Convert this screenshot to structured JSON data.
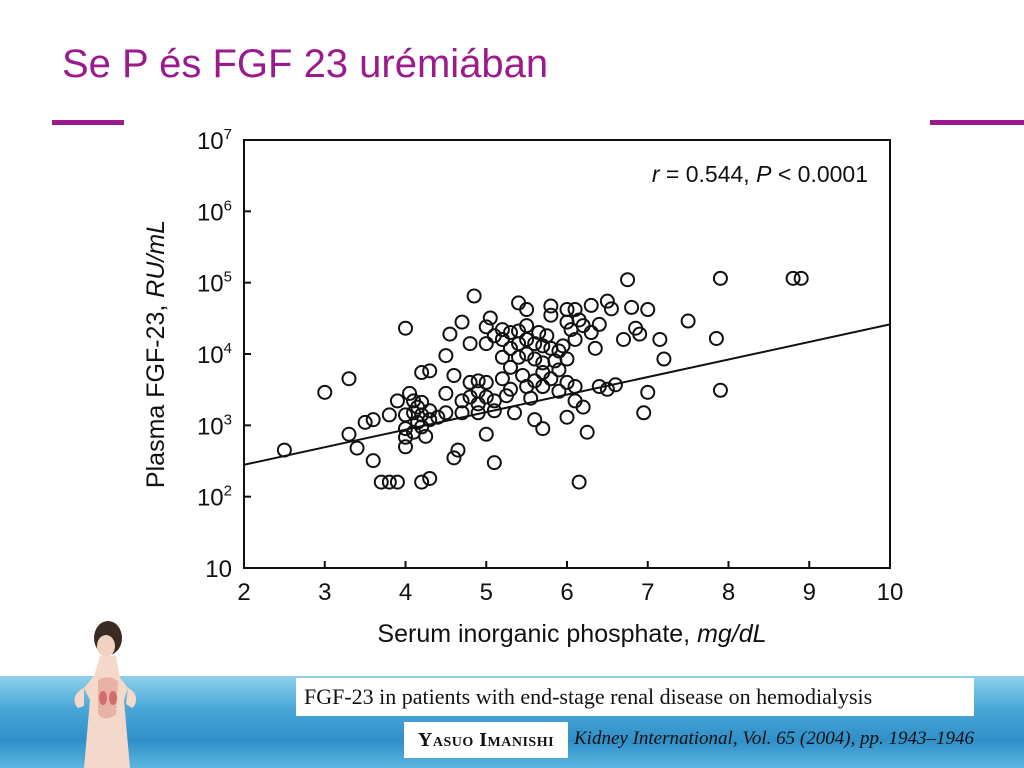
{
  "slide": {
    "title": "Se P és FGF 23 urémiában",
    "accent_color": "#9b1a8e",
    "caption": "FGF-23 in patients with end-stage renal disease on hemodialysis",
    "author": "Yasuo Imanishi",
    "citation": "Kidney International, Vol. 65 (2004), pp. 1943–1946",
    "decoration": "woman-figure-icon"
  },
  "chart_data": {
    "type": "scatter",
    "xlabel": "Serum inorganic phosphate,",
    "xlabel_unit": "mg/dL",
    "ylabel": "Plasma FGF-23,",
    "ylabel_unit": "RU/mL",
    "annotation": {
      "r_label": "r",
      "r_value": "= 0.544,",
      "p_label": "P",
      "p_value": "< 0.0001"
    },
    "xlim": [
      2,
      10
    ],
    "ylim_log10": [
      1,
      7
    ],
    "y_scale": "log",
    "x_ticks": [
      "2",
      "3",
      "4",
      "5",
      "6",
      "7",
      "8",
      "9",
      "10"
    ],
    "y_ticks": [
      {
        "base": "10",
        "exp": ""
      },
      {
        "base": "10",
        "exp": "2"
      },
      {
        "base": "10",
        "exp": "3"
      },
      {
        "base": "10",
        "exp": "4"
      },
      {
        "base": "10",
        "exp": "5"
      },
      {
        "base": "10",
        "exp": "6"
      },
      {
        "base": "10",
        "exp": "7"
      }
    ],
    "grid": false,
    "regression_line": [
      [
        2,
        280
      ],
      [
        10,
        26000
      ]
    ],
    "points": [
      [
        2.5,
        450
      ],
      [
        3.0,
        2900
      ],
      [
        3.3,
        4500
      ],
      [
        3.3,
        750
      ],
      [
        3.4,
        480
      ],
      [
        3.5,
        1100
      ],
      [
        3.6,
        1200
      ],
      [
        3.6,
        320
      ],
      [
        3.7,
        160
      ],
      [
        3.8,
        160
      ],
      [
        3.8,
        1400
      ],
      [
        3.9,
        160
      ],
      [
        3.9,
        2200
      ],
      [
        4.0,
        23000
      ],
      [
        4.0,
        1400
      ],
      [
        4.0,
        900
      ],
      [
        4.0,
        680
      ],
      [
        4.0,
        500
      ],
      [
        4.05,
        2800
      ],
      [
        4.1,
        2200
      ],
      [
        4.1,
        1500
      ],
      [
        4.1,
        800
      ],
      [
        4.15,
        1800
      ],
      [
        4.15,
        1100
      ],
      [
        4.2,
        5500
      ],
      [
        4.2,
        2100
      ],
      [
        4.2,
        1400
      ],
      [
        4.2,
        950
      ],
      [
        4.2,
        160
      ],
      [
        4.25,
        700
      ],
      [
        4.3,
        5800
      ],
      [
        4.3,
        1600
      ],
      [
        4.3,
        1200
      ],
      [
        4.3,
        180
      ],
      [
        4.4,
        1300
      ],
      [
        4.5,
        9500
      ],
      [
        4.5,
        2800
      ],
      [
        4.5,
        1500
      ],
      [
        4.55,
        19000
      ],
      [
        4.6,
        5000
      ],
      [
        4.6,
        350
      ],
      [
        4.65,
        450
      ],
      [
        4.7,
        28000
      ],
      [
        4.7,
        2200
      ],
      [
        4.7,
        1500
      ],
      [
        4.8,
        14000
      ],
      [
        4.8,
        4000
      ],
      [
        4.8,
        2500
      ],
      [
        4.85,
        65000
      ],
      [
        4.9,
        4200
      ],
      [
        4.9,
        3000
      ],
      [
        4.9,
        2000
      ],
      [
        4.9,
        1500
      ],
      [
        5.0,
        24000
      ],
      [
        5.0,
        14000
      ],
      [
        5.0,
        4000
      ],
      [
        5.0,
        2500
      ],
      [
        5.0,
        750
      ],
      [
        5.05,
        32000
      ],
      [
        5.1,
        18000
      ],
      [
        5.1,
        2200
      ],
      [
        5.1,
        1600
      ],
      [
        5.1,
        300
      ],
      [
        5.2,
        22000
      ],
      [
        5.2,
        16000
      ],
      [
        5.2,
        9000
      ],
      [
        5.2,
        4500
      ],
      [
        5.25,
        2600
      ],
      [
        5.3,
        20000
      ],
      [
        5.3,
        12000
      ],
      [
        5.3,
        6500
      ],
      [
        5.3,
        3200
      ],
      [
        5.35,
        1500
      ],
      [
        5.4,
        52000
      ],
      [
        5.4,
        21000
      ],
      [
        5.4,
        14000
      ],
      [
        5.4,
        9000
      ],
      [
        5.45,
        5000
      ],
      [
        5.5,
        42000
      ],
      [
        5.5,
        25000
      ],
      [
        5.5,
        16000
      ],
      [
        5.5,
        10000
      ],
      [
        5.5,
        3500
      ],
      [
        5.55,
        2400
      ],
      [
        5.6,
        14000
      ],
      [
        5.6,
        8500
      ],
      [
        5.6,
        4200
      ],
      [
        5.6,
        1200
      ],
      [
        5.65,
        20000
      ],
      [
        5.7,
        13000
      ],
      [
        5.7,
        7500
      ],
      [
        5.7,
        5500
      ],
      [
        5.7,
        3500
      ],
      [
        5.7,
        900
      ],
      [
        5.75,
        18000
      ],
      [
        5.8,
        47000
      ],
      [
        5.8,
        35000
      ],
      [
        5.8,
        12000
      ],
      [
        5.8,
        4500
      ],
      [
        5.85,
        8000
      ],
      [
        5.9,
        11000
      ],
      [
        5.9,
        6000
      ],
      [
        5.9,
        3000
      ],
      [
        5.95,
        13000
      ],
      [
        6.0,
        42000
      ],
      [
        6.0,
        28000
      ],
      [
        6.0,
        8500
      ],
      [
        6.0,
        4000
      ],
      [
        6.0,
        1300
      ],
      [
        6.05,
        22000
      ],
      [
        6.1,
        42000
      ],
      [
        6.1,
        16000
      ],
      [
        6.1,
        3500
      ],
      [
        6.1,
        2200
      ],
      [
        6.15,
        160
      ],
      [
        6.15,
        30000
      ],
      [
        6.2,
        25000
      ],
      [
        6.2,
        1800
      ],
      [
        6.25,
        800
      ],
      [
        6.3,
        48000
      ],
      [
        6.3,
        20000
      ],
      [
        6.35,
        12000
      ],
      [
        6.4,
        26000
      ],
      [
        6.4,
        3500
      ],
      [
        6.5,
        55000
      ],
      [
        6.5,
        3200
      ],
      [
        6.55,
        43000
      ],
      [
        6.6,
        3700
      ],
      [
        6.7,
        16000
      ],
      [
        6.75,
        110000
      ],
      [
        6.8,
        45000
      ],
      [
        6.85,
        23000
      ],
      [
        6.9,
        19000
      ],
      [
        6.95,
        1500
      ],
      [
        7.0,
        42000
      ],
      [
        7.0,
        2900
      ],
      [
        7.15,
        16000
      ],
      [
        7.2,
        8500
      ],
      [
        7.5,
        29000
      ],
      [
        7.85,
        16500
      ],
      [
        7.9,
        115000
      ],
      [
        7.9,
        3100
      ],
      [
        8.8,
        115000
      ],
      [
        8.9,
        115000
      ]
    ]
  }
}
